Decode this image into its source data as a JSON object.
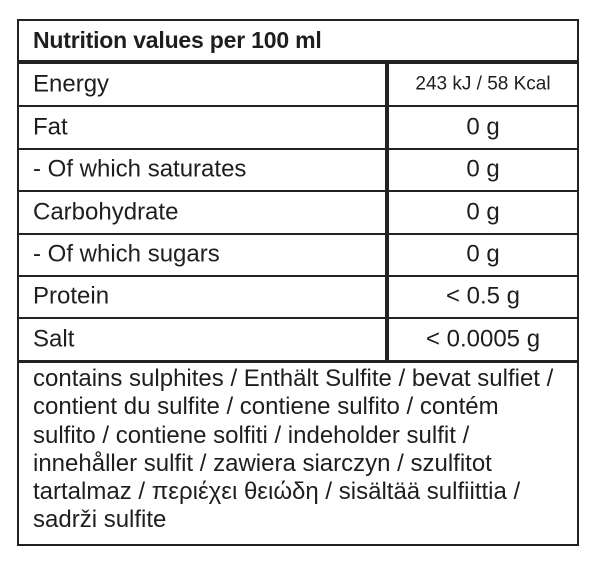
{
  "title": "Nutrition values per 100 ml",
  "rows": [
    {
      "label": "Energy",
      "value": "243 kJ / 58 Kcal"
    },
    {
      "label": "Fat",
      "value": "0 g"
    },
    {
      "label": "- Of which saturates",
      "value": "0 g"
    },
    {
      "label": "Carbohydrate",
      "value": "0 g"
    },
    {
      "label": "- Of which sugars",
      "value": "0 g"
    },
    {
      "label": "Protein",
      "value": "< 0.5 g"
    },
    {
      "label": "Salt",
      "value": "< 0.0005 g"
    }
  ],
  "footer": "contains sulphites / Enthält Sulfite / bevat sulfiet / contient du sulfite / contiene sulfito / contém sulfito / contiene solfiti / indeholder sulfit / innehåller sulfit / zawiera siarczyn / szulfitot tartalmaz / περιέχει θειώδη / sisältää sulfiittia / sadrži sulfite"
}
